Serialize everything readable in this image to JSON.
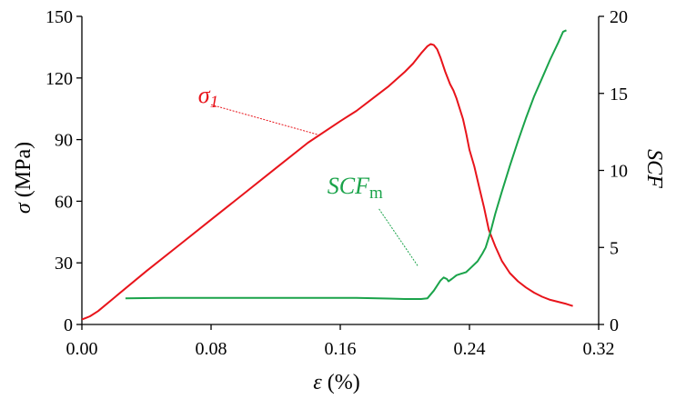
{
  "chart_data": {
    "type": "line",
    "title": "",
    "xlabel": {
      "symbol": "ε",
      "unit": " (%)"
    },
    "ylabel_left": {
      "symbol": "σ",
      "unit": " (MPa)"
    },
    "ylabel_right": "SCF",
    "xlim": [
      0.0,
      0.32
    ],
    "ylim_left": [
      0,
      150
    ],
    "ylim_right": [
      0,
      20
    ],
    "x_ticks": [
      "0.00",
      "0.08",
      "0.16",
      "0.24",
      "0.32"
    ],
    "y_left_ticks": [
      "0",
      "30",
      "60",
      "90",
      "120",
      "150"
    ],
    "y_right_ticks": [
      "0",
      "5",
      "10",
      "15",
      "20"
    ],
    "grid": false,
    "legend": "none",
    "series": [
      {
        "name": "σ1",
        "color": "#e8141b",
        "axis": "left",
        "points": [
          [
            0.0,
            2.5
          ],
          [
            0.002,
            3.0
          ],
          [
            0.005,
            4.0
          ],
          [
            0.01,
            6.5
          ],
          [
            0.02,
            13
          ],
          [
            0.04,
            26
          ],
          [
            0.06,
            38.5
          ],
          [
            0.08,
            51
          ],
          [
            0.1,
            63.5
          ],
          [
            0.12,
            76
          ],
          [
            0.14,
            88.5
          ],
          [
            0.16,
            99
          ],
          [
            0.17,
            104
          ],
          [
            0.18,
            110
          ],
          [
            0.19,
            116
          ],
          [
            0.2,
            123
          ],
          [
            0.205,
            127
          ],
          [
            0.21,
            132
          ],
          [
            0.214,
            135.5
          ],
          [
            0.216,
            136.5
          ],
          [
            0.218,
            136
          ],
          [
            0.22,
            134
          ],
          [
            0.222,
            130
          ],
          [
            0.225,
            123
          ],
          [
            0.228,
            117
          ],
          [
            0.23,
            114
          ],
          [
            0.232,
            110
          ],
          [
            0.236,
            100
          ],
          [
            0.238,
            93
          ],
          [
            0.24,
            85
          ],
          [
            0.243,
            77
          ],
          [
            0.246,
            67
          ],
          [
            0.249,
            57
          ],
          [
            0.252,
            46
          ],
          [
            0.256,
            38
          ],
          [
            0.26,
            31
          ],
          [
            0.265,
            25
          ],
          [
            0.27,
            21
          ],
          [
            0.275,
            18
          ],
          [
            0.28,
            15.5
          ],
          [
            0.285,
            13.5
          ],
          [
            0.29,
            12
          ],
          [
            0.295,
            11
          ],
          [
            0.3,
            10
          ],
          [
            0.304,
            9
          ]
        ]
      },
      {
        "name": "SCF",
        "color": "#1aa34a",
        "axis": "right",
        "points": [
          [
            0.027,
            1.7
          ],
          [
            0.05,
            1.72
          ],
          [
            0.1,
            1.72
          ],
          [
            0.15,
            1.72
          ],
          [
            0.17,
            1.72
          ],
          [
            0.19,
            1.68
          ],
          [
            0.2,
            1.65
          ],
          [
            0.21,
            1.65
          ],
          [
            0.214,
            1.7
          ],
          [
            0.218,
            2.2
          ],
          [
            0.222,
            2.85
          ],
          [
            0.224,
            3.05
          ],
          [
            0.226,
            2.95
          ],
          [
            0.227,
            2.8
          ],
          [
            0.229,
            2.95
          ],
          [
            0.232,
            3.2
          ],
          [
            0.235,
            3.3
          ],
          [
            0.238,
            3.4
          ],
          [
            0.241,
            3.7
          ],
          [
            0.245,
            4.1
          ],
          [
            0.248,
            4.6
          ],
          [
            0.25,
            5.0
          ],
          [
            0.253,
            6.0
          ],
          [
            0.256,
            7.2
          ],
          [
            0.26,
            8.6
          ],
          [
            0.265,
            10.3
          ],
          [
            0.27,
            11.9
          ],
          [
            0.275,
            13.4
          ],
          [
            0.28,
            14.8
          ],
          [
            0.285,
            16.0
          ],
          [
            0.29,
            17.2
          ],
          [
            0.295,
            18.3
          ],
          [
            0.298,
            19.0
          ],
          [
            0.3,
            19.1
          ]
        ]
      }
    ],
    "annotations": [
      {
        "label": "σ",
        "sub": "1",
        "color": "#e8141b",
        "text_at": [
          0.072,
          108
        ],
        "arrow_from": [
          0.08,
          107
        ],
        "arrow_to": [
          0.148,
          92
        ],
        "axis": "left",
        "sub_style": "italic"
      },
      {
        "label": "SCF",
        "sub": "m",
        "color": "#1aa34a",
        "text_at": [
          0.152,
          8.5
        ],
        "arrow_from": [
          0.184,
          7.5
        ],
        "arrow_to": [
          0.208,
          3.8
        ],
        "axis": "right",
        "sub_style": "normal"
      }
    ]
  }
}
